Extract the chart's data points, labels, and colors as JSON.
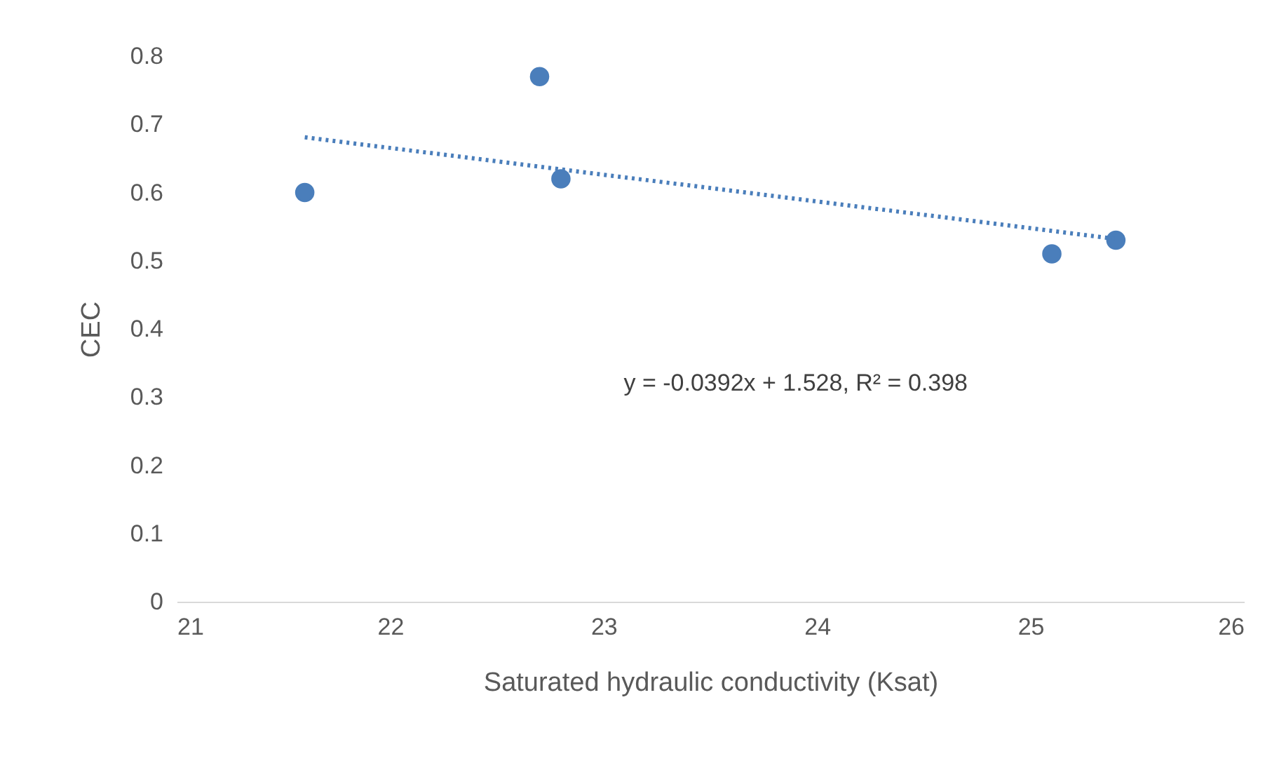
{
  "chart_data": {
    "type": "scatter",
    "xlabel": "Saturated hydraulic conductivity (Ksat)",
    "ylabel": "CEC",
    "x": [
      21.6,
      22.7,
      22.8,
      25.1,
      25.4
    ],
    "series": [
      {
        "color": "#4a7ebb",
        "marker": "circle",
        "values": [
          0.6,
          0.77,
          0.62,
          0.51,
          0.53
        ]
      },
      {
        "type": "line",
        "color": "#4a7ebb",
        "line_style": "dotted",
        "marker": "none",
        "x": [
          21.6,
          25.4
        ],
        "values": [
          0.681,
          0.532
        ]
      }
    ],
    "annotations": [
      "y = -0.0392x + 1.528, R² = 0.398"
    ],
    "xlim": [
      21,
      26
    ],
    "xticks": [
      21,
      22,
      23,
      24,
      25,
      26
    ],
    "ylim": [
      0,
      0.8
    ],
    "yticks": [
      0,
      0.1,
      0.2,
      0.3,
      0.4,
      0.5,
      0.6,
      0.7,
      0.8
    ],
    "grid": false
  }
}
